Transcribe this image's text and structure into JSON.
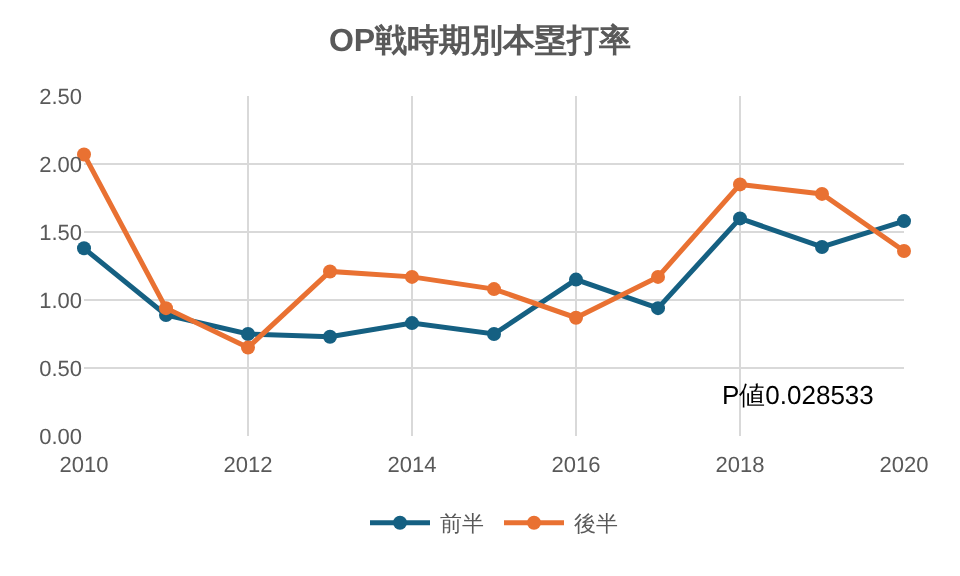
{
  "chart_data": {
    "type": "line",
    "title": "OP戦時期別本塁打率",
    "x": [
      2010,
      2011,
      2012,
      2013,
      2014,
      2015,
      2016,
      2017,
      2018,
      2019,
      2020
    ],
    "series": [
      {
        "name": "前半",
        "color": "#156082",
        "values": [
          1.38,
          0.89,
          0.75,
          0.73,
          0.83,
          0.75,
          1.15,
          0.94,
          1.6,
          1.39,
          1.58
        ]
      },
      {
        "name": "後半",
        "color": "#e97132",
        "values": [
          2.07,
          0.94,
          0.65,
          1.21,
          1.17,
          1.08,
          0.87,
          1.17,
          1.85,
          1.78,
          1.36
        ]
      }
    ],
    "xlim": [
      2010,
      2020
    ],
    "xticks": [
      2010,
      2012,
      2014,
      2016,
      2018,
      2020
    ],
    "ylim": [
      0,
      2.5
    ],
    "yticks": [
      {
        "value": 0,
        "label": "0.00"
      },
      {
        "value": 0.5,
        "label": "0.50"
      },
      {
        "value": 1,
        "label": "1.00"
      },
      {
        "value": 1.5,
        "label": "1.50"
      },
      {
        "value": 2,
        "label": "2.00"
      },
      {
        "value": 2.5,
        "label": "2.50"
      }
    ],
    "annotations": [
      "P値0.028533"
    ],
    "grid": true,
    "legend": "bottom",
    "marker": "circle",
    "line_style": "solid"
  }
}
